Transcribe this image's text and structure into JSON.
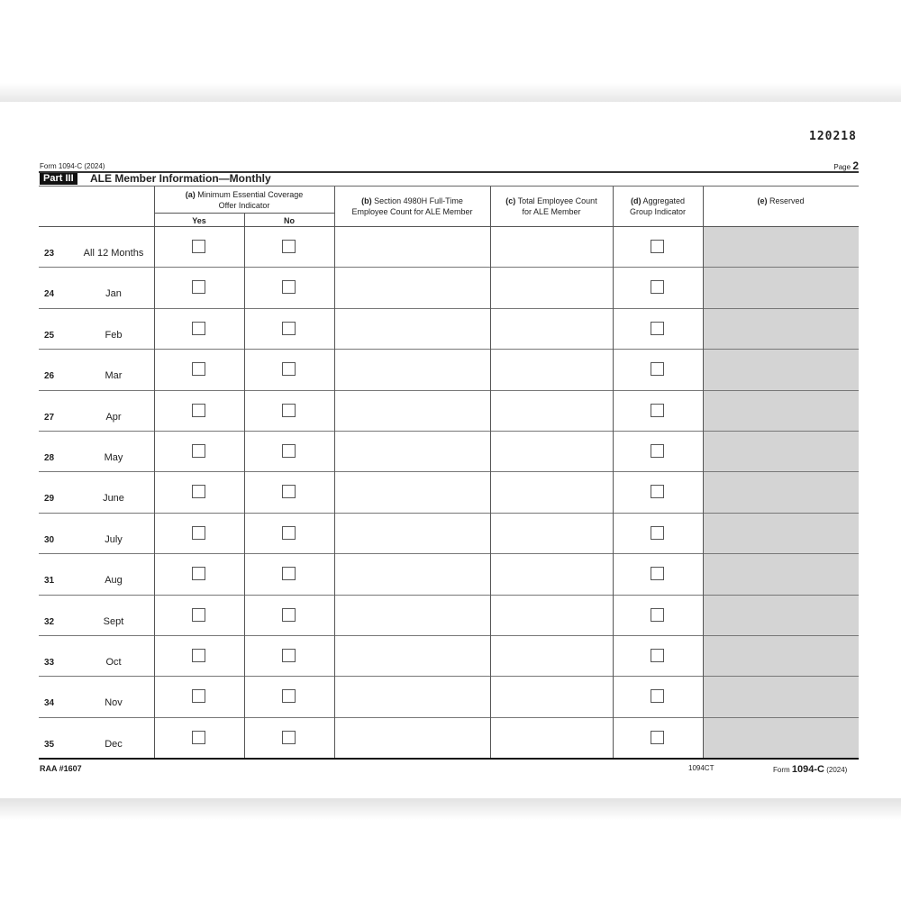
{
  "form_id_code": "120218",
  "header": {
    "form_label": "Form 1094-C (2024)",
    "page_label": "Page",
    "page_number": "2"
  },
  "part": {
    "badge": "Part III",
    "title": "ALE Member Information—Monthly"
  },
  "columns": {
    "a": {
      "letter": "(a)",
      "label": "Minimum Essential Coverage",
      "label2": "Offer Indicator",
      "yes": "Yes",
      "no": "No"
    },
    "b": {
      "letter": "(b)",
      "label": "Section 4980H Full-Time",
      "label2": "Employee Count for ALE Member"
    },
    "c": {
      "letter": "(c)",
      "label": "Total Employee Count",
      "label2": "for ALE Member"
    },
    "d": {
      "letter": "(d)",
      "label": "Aggregated",
      "label2": "Group Indicator"
    },
    "e": {
      "letter": "(e)",
      "label": "Reserved"
    }
  },
  "rows": [
    {
      "line": "23",
      "month": "All 12 Months"
    },
    {
      "line": "24",
      "month": "Jan"
    },
    {
      "line": "25",
      "month": "Feb"
    },
    {
      "line": "26",
      "month": "Mar"
    },
    {
      "line": "27",
      "month": "Apr"
    },
    {
      "line": "28",
      "month": "May"
    },
    {
      "line": "29",
      "month": "June"
    },
    {
      "line": "30",
      "month": "July"
    },
    {
      "line": "31",
      "month": "Aug"
    },
    {
      "line": "32",
      "month": "Sept"
    },
    {
      "line": "33",
      "month": "Oct"
    },
    {
      "line": "34",
      "month": "Nov"
    },
    {
      "line": "35",
      "month": "Dec"
    }
  ],
  "footer": {
    "raa": "RAA #1607",
    "code": "1094CT",
    "form_prefix": "Form",
    "form_name": "1094-C",
    "form_year": "(2024)"
  },
  "colors": {
    "reserved_fill": "#d4d4d4",
    "part_badge": "#111111"
  }
}
